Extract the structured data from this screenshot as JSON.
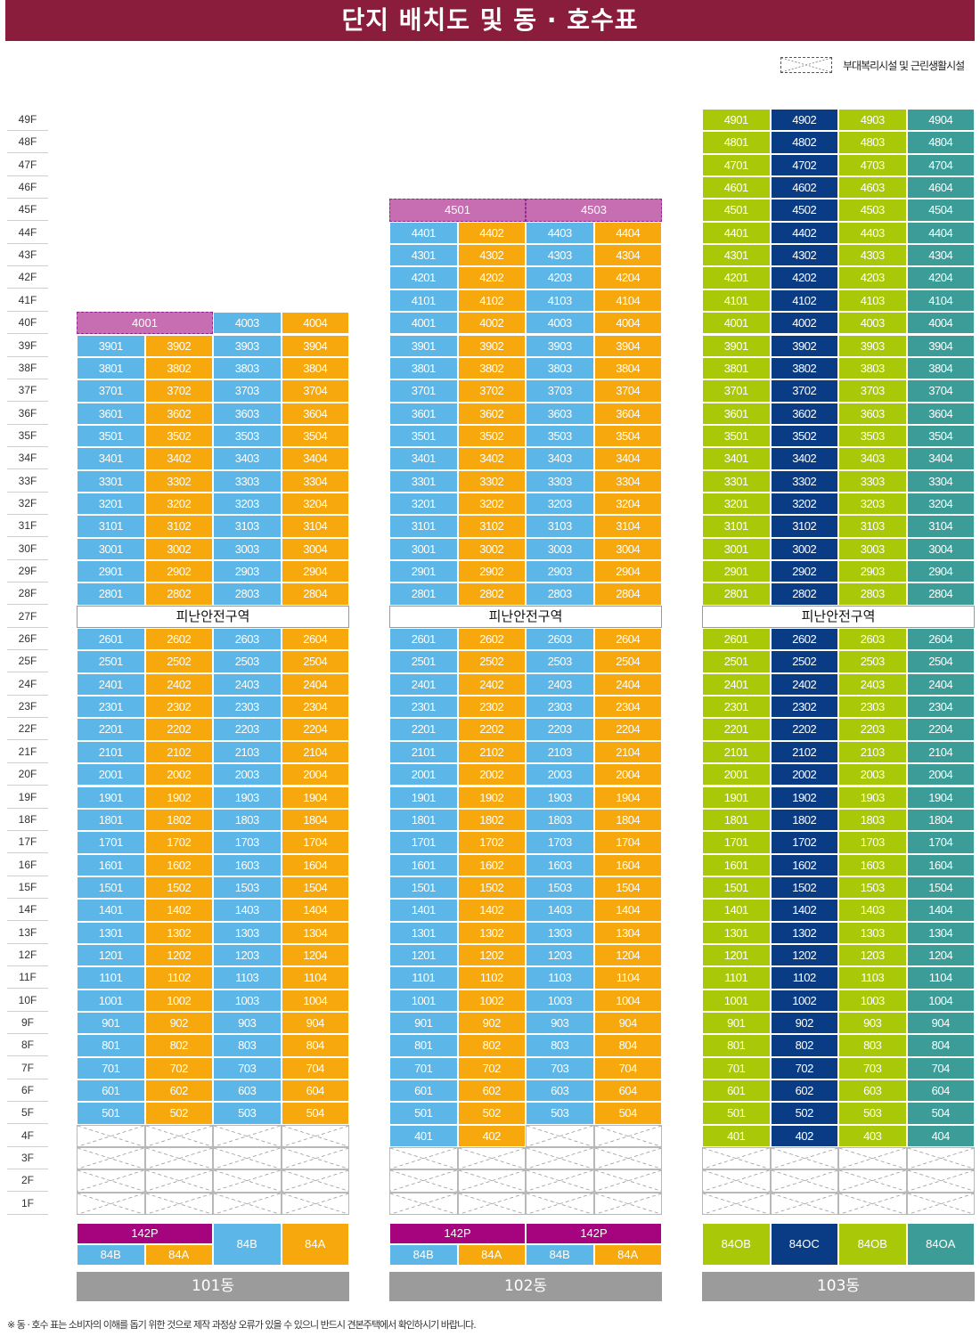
{
  "title": "단지 배치도 및 동 · 호수표",
  "legend": {
    "label": "부대복리시설 및 근린생활시설"
  },
  "floors": [
    "49F",
    "48F",
    "47F",
    "46F",
    "45F",
    "44F",
    "43F",
    "42F",
    "41F",
    "40F",
    "39F",
    "38F",
    "37F",
    "36F",
    "35F",
    "34F",
    "33F",
    "32F",
    "31F",
    "30F",
    "29F",
    "28F",
    "27F",
    "26F",
    "25F",
    "24F",
    "23F",
    "22F",
    "21F",
    "20F",
    "19F",
    "18F",
    "17F",
    "16F",
    "15F",
    "14F",
    "13F",
    "12F",
    "11F",
    "10F",
    "9F",
    "8F",
    "7F",
    "6F",
    "5F",
    "4F",
    "3F",
    "2F",
    "1F"
  ],
  "refuge_label": "피난안전구역",
  "colors": {
    "sky": "#5cb6e7",
    "orange": "#f6a80c",
    "lime": "#a9c908",
    "navy": "#0a3c86",
    "teal": "#3c9c97",
    "magenta": "#a5047e",
    "commercial": "#c66eb1",
    "title_bg": "#8b1d3c",
    "name_bg": "#9b9b9b"
  },
  "buildings": [
    {
      "name": "101동",
      "top_floor": 40,
      "unit_colors": [
        "sky",
        "orange",
        "sky",
        "orange"
      ],
      "special_rows": [
        {
          "floor": 40,
          "commercial": [
            {
              "label": "4001",
              "span": 2
            }
          ],
          "units": [
            {
              "col": 2,
              "label": "4003"
            },
            {
              "col": 3,
              "label": "4004"
            }
          ]
        }
      ],
      "lowest_unit_floor": 5,
      "floor4_units": [],
      "type_rows": [
        {
          "cells": [
            {
              "label": "142P",
              "span": 2,
              "color": "magenta",
              "half": "top"
            },
            {
              "label": "84B",
              "span": 1,
              "color": "sky",
              "full": true
            },
            {
              "label": "84A",
              "span": 1,
              "color": "orange",
              "full": true
            }
          ]
        },
        {
          "cells": [
            {
              "label": "84B",
              "color": "sky"
            },
            {
              "label": "84A",
              "color": "orange"
            }
          ]
        }
      ]
    },
    {
      "name": "102동",
      "top_floor": 45,
      "unit_colors": [
        "sky",
        "orange",
        "sky",
        "orange"
      ],
      "special_rows": [
        {
          "floor": 45,
          "commercial": [
            {
              "label": "4501",
              "span": 2
            },
            {
              "label": "4503",
              "span": 2
            }
          ],
          "units": []
        }
      ],
      "lowest_unit_floor": 5,
      "floor4_units": [
        "401",
        "402"
      ],
      "type_rows": [
        {
          "cells": [
            {
              "label": "142P",
              "span": 2,
              "color": "magenta"
            },
            {
              "label": "142P",
              "span": 2,
              "color": "magenta"
            }
          ]
        },
        {
          "cells": [
            {
              "label": "84B",
              "color": "sky"
            },
            {
              "label": "84A",
              "color": "orange"
            },
            {
              "label": "84B",
              "color": "sky"
            },
            {
              "label": "84A",
              "color": "orange"
            }
          ]
        }
      ]
    },
    {
      "name": "103동",
      "top_floor": 49,
      "unit_colors": [
        "lime",
        "navy",
        "lime",
        "teal"
      ],
      "special_rows": [],
      "lowest_unit_floor": 5,
      "floor4_units": [
        "401",
        "402",
        "403",
        "404"
      ],
      "type_rows": [
        {
          "cells": [
            {
              "label": "84OB",
              "color": "lime",
              "full": true
            },
            {
              "label": "84OC",
              "color": "navy",
              "full": true
            },
            {
              "label": "84OB",
              "color": "lime",
              "full": true
            },
            {
              "label": "84OA",
              "color": "teal",
              "full": true
            }
          ]
        }
      ]
    }
  ],
  "footnote": "※ 동 · 호수 표는 소비자의 이해를 돕기 위한 것으로 제작 과정상 오류가 있을 수 있으니 반드시 견본주택에서 확인하시기 바랍니다."
}
